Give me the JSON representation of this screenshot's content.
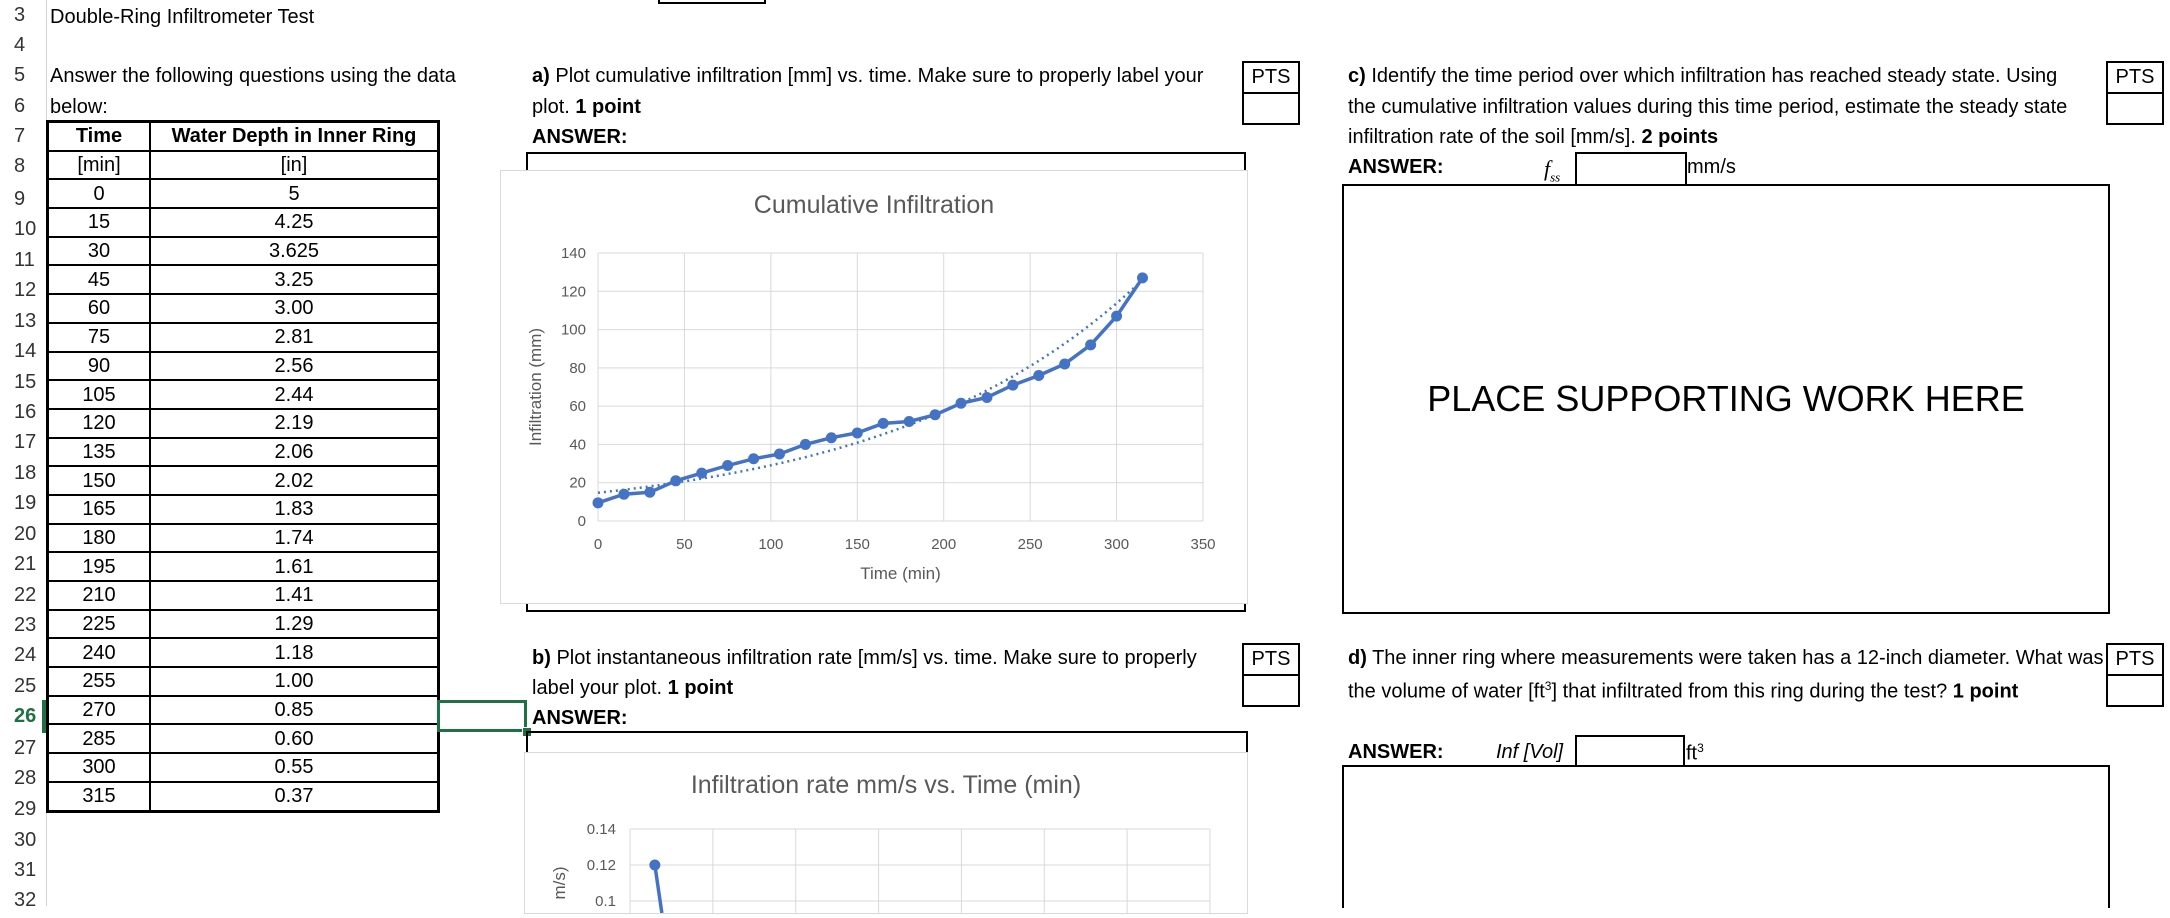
{
  "rows": [
    "3",
    "4",
    "5",
    "6",
    "7",
    "8",
    "9",
    "10",
    "11",
    "12",
    "13",
    "14",
    "15",
    "16",
    "17",
    "18",
    "19",
    "20",
    "21",
    "22",
    "23",
    "24",
    "25",
    "26",
    "27",
    "28",
    "29",
    "30",
    "31",
    "32"
  ],
  "active_row": "26",
  "sheet_title": "Double-Ring Infiltrometer Test",
  "intro_line1": "Answer the following questions using the data",
  "intro_line2": "below:",
  "table": {
    "header1": [
      "Time",
      "Water Depth in Inner Ring"
    ],
    "header2": [
      "[min]",
      "[in]"
    ],
    "rows": [
      [
        "0",
        "5"
      ],
      [
        "15",
        "4.25"
      ],
      [
        "30",
        "3.625"
      ],
      [
        "45",
        "3.25"
      ],
      [
        "60",
        "3.00"
      ],
      [
        "75",
        "2.81"
      ],
      [
        "90",
        "2.56"
      ],
      [
        "105",
        "2.44"
      ],
      [
        "120",
        "2.19"
      ],
      [
        "135",
        "2.06"
      ],
      [
        "150",
        "2.02"
      ],
      [
        "165",
        "1.83"
      ],
      [
        "180",
        "1.74"
      ],
      [
        "195",
        "1.61"
      ],
      [
        "210",
        "1.41"
      ],
      [
        "225",
        "1.29"
      ],
      [
        "240",
        "1.18"
      ],
      [
        "255",
        "1.00"
      ],
      [
        "270",
        "0.85"
      ],
      [
        "285",
        "0.60"
      ],
      [
        "300",
        "0.55"
      ],
      [
        "315",
        "0.37"
      ]
    ]
  },
  "qa": {
    "label": "a)",
    "line1": "Plot cumulative infiltration [mm] vs. time. Make sure to properly label your",
    "line2_prefix": "plot.",
    "line2_bold": "1 point",
    "answer": "ANSWER:",
    "pts": "PTS"
  },
  "qb": {
    "label": "b)",
    "line1": "Plot instantaneous infiltration rate [mm/s] vs. time. Make sure to properly",
    "line2_prefix": "label your plot.",
    "line2_bold": "1 point",
    "answer": "ANSWER:",
    "pts": "PTS"
  },
  "qc": {
    "label": "c)",
    "line1": "Identify the time period over which infiltration has reached steady state. Using",
    "line2": "the cumulative infiltration values during this time period, estimate the steady state",
    "line3_prefix": "infiltration rate of the soil [mm/s].",
    "line3_bold": "2 points",
    "answer": "ANSWER:",
    "var": "f",
    "var_sub": "ss",
    "unit": "mm/s",
    "placeholder": "PLACE SUPPORTING WORK HERE",
    "pts": "PTS"
  },
  "qd": {
    "label": "d)",
    "line1": "The inner ring where measurements were taken has a 12-inch diameter. What was",
    "line2_prefix": "the volume of water [ft",
    "line2_sup": "3",
    "line2_mid": "] that infiltrated from this ring during the test?",
    "line2_bold": "1 point",
    "answer": "ANSWER:",
    "var": "Inf [Vol]",
    "unit": "ft",
    "unit_sup": "3",
    "pts": "PTS"
  },
  "chart_data": [
    {
      "type": "line",
      "title": "Cumulative Infiltration",
      "xlabel": "Time (min)",
      "ylabel": "Infiltration (mm)",
      "xlim": [
        0,
        350
      ],
      "ylim": [
        0,
        140
      ],
      "xticks": [
        0,
        50,
        100,
        150,
        200,
        250,
        300,
        350
      ],
      "yticks": [
        0,
        20,
        40,
        60,
        80,
        100,
        120,
        140
      ],
      "grid": true,
      "trendline": "exponential",
      "series": [
        {
          "color": "#4472c4",
          "x": [
            0,
            15,
            30,
            45,
            60,
            75,
            90,
            105,
            120,
            135,
            150,
            165,
            180,
            195,
            210,
            225,
            240,
            255,
            270,
            285,
            300,
            315
          ],
          "y": [
            9.5,
            14,
            15,
            21,
            25,
            29,
            32.5,
            35,
            40,
            43.5,
            46,
            51,
            52,
            55.5,
            61.5,
            64.5,
            71,
            76,
            82,
            92,
            107,
            127
          ]
        }
      ]
    },
    {
      "type": "line",
      "title": "Infiltration rate mm/s vs. Time (min)",
      "ylabel": "m/s)",
      "ylim_visible": [
        0.1,
        0.14
      ],
      "yticks": [
        "0.14",
        "0.12",
        "0.1"
      ],
      "grid": true,
      "series": [
        {
          "color": "#4472c4",
          "x": [
            15
          ],
          "y": [
            0.12
          ]
        }
      ]
    }
  ]
}
